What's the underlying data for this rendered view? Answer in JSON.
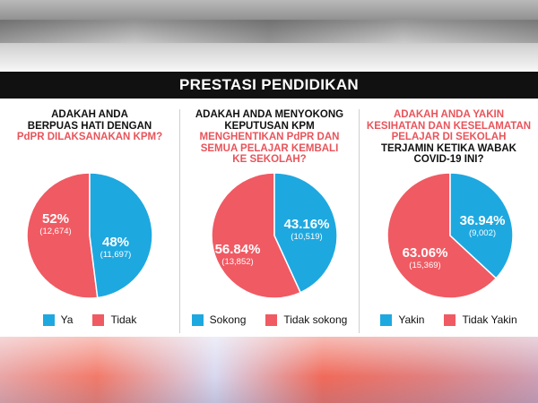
{
  "banner": {
    "title": "PRESTASI PENDIDIKAN"
  },
  "colors": {
    "blue": "#1ea8e0",
    "red": "#f05a63"
  },
  "chart_data": [
    {
      "type": "pie",
      "question_black": [
        "ADAKAH ANDA",
        "BERPUAS HATI DENGAN"
      ],
      "question_red": [
        "PdPR DILAKSANAKAN KPM?"
      ],
      "slices": [
        {
          "label": "Ya",
          "percent_label": "48%",
          "count_label": "(11,697)",
          "value": 48,
          "count": 11697,
          "color": "#1ea8e0"
        },
        {
          "label": "Tidak",
          "percent_label": "52%",
          "count_label": "(12,674)",
          "value": 52,
          "count": 12674,
          "color": "#f05a63"
        }
      ]
    },
    {
      "type": "pie",
      "question_black": [
        "ADAKAH ANDA MENYOKONG",
        "KEPUTUSAN KPM"
      ],
      "question_red": [
        "MENGHENTIKAN PdPR DAN",
        "SEMUA PELAJAR KEMBALI",
        "KE SEKOLAH?"
      ],
      "slices": [
        {
          "label": "Sokong",
          "percent_label": "43.16%",
          "count_label": "(10,519)",
          "value": 43.16,
          "count": 10519,
          "color": "#1ea8e0"
        },
        {
          "label": "Tidak sokong",
          "percent_label": "56.84%",
          "count_label": "(13,852)",
          "value": 56.84,
          "count": 13852,
          "color": "#f05a63"
        }
      ]
    },
    {
      "type": "pie",
      "question_red": [
        "ADAKAH ANDA YAKIN",
        "KESIHATAN DAN KESELAMATAN",
        "PELAJAR DI SEKOLAH"
      ],
      "question_black": [
        "TERJAMIN KETIKA WABAK",
        "COVID-19 INI?"
      ],
      "slices": [
        {
          "label": "Yakin",
          "percent_label": "36.94%",
          "count_label": "(9,002)",
          "value": 36.94,
          "count": 9002,
          "color": "#1ea8e0"
        },
        {
          "label": "Tidak Yakin",
          "percent_label": "63.06%",
          "count_label": "(15,369)",
          "value": 63.06,
          "count": 15369,
          "color": "#f05a63"
        }
      ]
    }
  ]
}
